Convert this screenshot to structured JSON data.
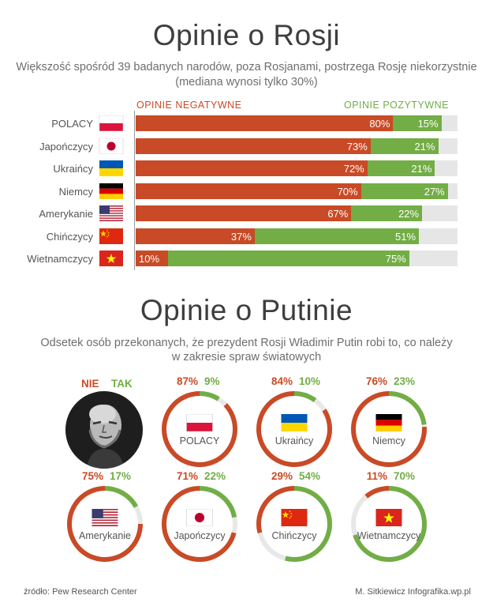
{
  "section1": {
    "title": "Opinie o Rosji",
    "subtitle_line1": "Większość spośród 39 badanych narodów, poza Rosjanami, postrzega Rosję niekorzystnie",
    "subtitle_line2": "(mediana wynosi tylko 30%)",
    "header_negative": "OPINIE NEGATYWNE",
    "header_positive": "OPINIE POZYTYWNE"
  },
  "section2": {
    "title": "Opinie o Putinie",
    "subtitle_line1": "Odsetek osób przekonanych, że prezydent Rosji Władimir Putin robi to, co należy",
    "subtitle_line2": "w zakresie spraw światowych",
    "legend_no": "NIE",
    "legend_yes": "TAK"
  },
  "footer": {
    "source": "źródło: Pew Research Center",
    "author": "M. Sitkiewicz Infografika.wp.pl"
  },
  "colors": {
    "negative": "#c94a26",
    "positive": "#72ad45",
    "track": "#e6e6e6",
    "ring_track": "#e8e8e8"
  },
  "chart_data": [
    {
      "type": "bar",
      "title": "Opinie o Rosji",
      "categories": [
        "POLACY",
        "Japończycy",
        "Ukraińcy",
        "Niemcy",
        "Amerykanie",
        "Chińczycy",
        "Wietnamczycy"
      ],
      "flags": [
        "poland",
        "japan",
        "ukraine",
        "germany",
        "usa",
        "china",
        "vietnam"
      ],
      "series": [
        {
          "name": "OPINIE NEGATYWNE",
          "values": [
            80,
            73,
            72,
            70,
            67,
            37,
            10
          ]
        },
        {
          "name": "OPINIE POZYTYWNE",
          "values": [
            15,
            21,
            21,
            27,
            22,
            51,
            75
          ]
        }
      ],
      "value_labels_negative": [
        "80%",
        "73%",
        "72%",
        "70%",
        "67%",
        "37%",
        "10%"
      ],
      "value_labels_positive": [
        "15%",
        "21%",
        "21%",
        "27%",
        "22%",
        "51%",
        "75%"
      ],
      "stacked": true,
      "xlim": [
        0,
        100
      ]
    },
    {
      "type": "pie",
      "title": "Opinie o Putinie",
      "categories": [
        "POLACY",
        "Ukraińcy",
        "Niemcy",
        "Amerykanie",
        "Japończycy",
        "Chińczycy",
        "Wietnamczycy"
      ],
      "flags": [
        "poland",
        "ukraine",
        "germany",
        "usa",
        "japan",
        "china",
        "vietnam"
      ],
      "series": [
        {
          "name": "NIE",
          "values": [
            87,
            84,
            76,
            75,
            71,
            29,
            11
          ]
        },
        {
          "name": "TAK",
          "values": [
            9,
            10,
            23,
            17,
            22,
            54,
            70
          ]
        }
      ],
      "labels_no": [
        "87%",
        "84%",
        "76%",
        "75%",
        "71%",
        "29%",
        "11%"
      ],
      "labels_yes": [
        "9%",
        "10%",
        "23%",
        "17%",
        "22%",
        "54%",
        "70%"
      ]
    }
  ]
}
